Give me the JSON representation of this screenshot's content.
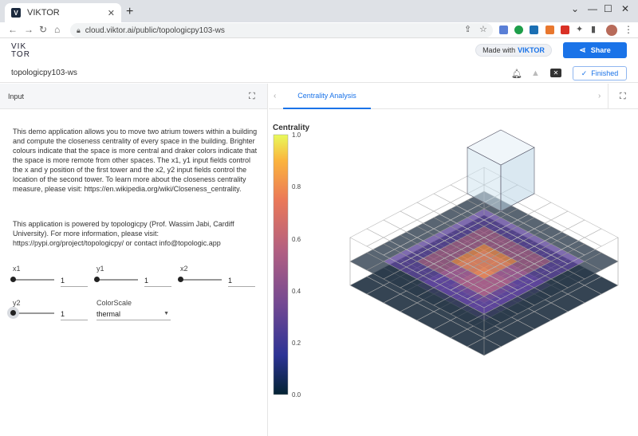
{
  "browser": {
    "tab_title": "VIKTOR",
    "favicon_letter": "V",
    "url": "cloud.viktor.ai/public/topologicpy103-ws"
  },
  "header": {
    "logo_line1": "VIK",
    "logo_line2": "TOR",
    "made_with_text": "Made with",
    "made_with_brand": "VIKTOR",
    "share_label": "Share"
  },
  "appbar": {
    "app_name": "topologicpy103-ws",
    "finished_label": "Finished"
  },
  "left": {
    "panel_title": "Input",
    "description": "This demo application allows you to move two atrium towers within a building and compute the closeness centrality of every space in the building. Brighter colours indicate that the space is more central and draker colors indicate that the space is more remote from other spaces. The x1, y1 input fields control the x and y position of the first tower and the x2, y2 input fields control the location of the second tower. To learn more about the closeness centrality measure, please visit: https://en.wikipedia.org/wiki/Closeness_centrality.",
    "powered": "This application is powered by topologicpy (Prof. Wassim Jabi, Cardiff University). For more information, please visit: https://pypi.org/project/topologicpy/ or contact info@topologic.app",
    "fields": {
      "x1_label": "x1",
      "x1_value": "1",
      "y1_label": "y1",
      "y1_value": "1",
      "x2_label": "x2",
      "x2_value": "1",
      "y2_label": "y2",
      "y2_value": "1",
      "colorscale_label": "ColorScale",
      "colorscale_value": "thermal"
    }
  },
  "right": {
    "tab_label": "Centrality Analysis",
    "colorbar_title": "Centrality",
    "colorbar_ticks": [
      "1.0",
      "0.8",
      "0.6",
      "0.4",
      "0.2",
      "0.0"
    ]
  },
  "colors": {
    "accent": "#1a73e8"
  }
}
